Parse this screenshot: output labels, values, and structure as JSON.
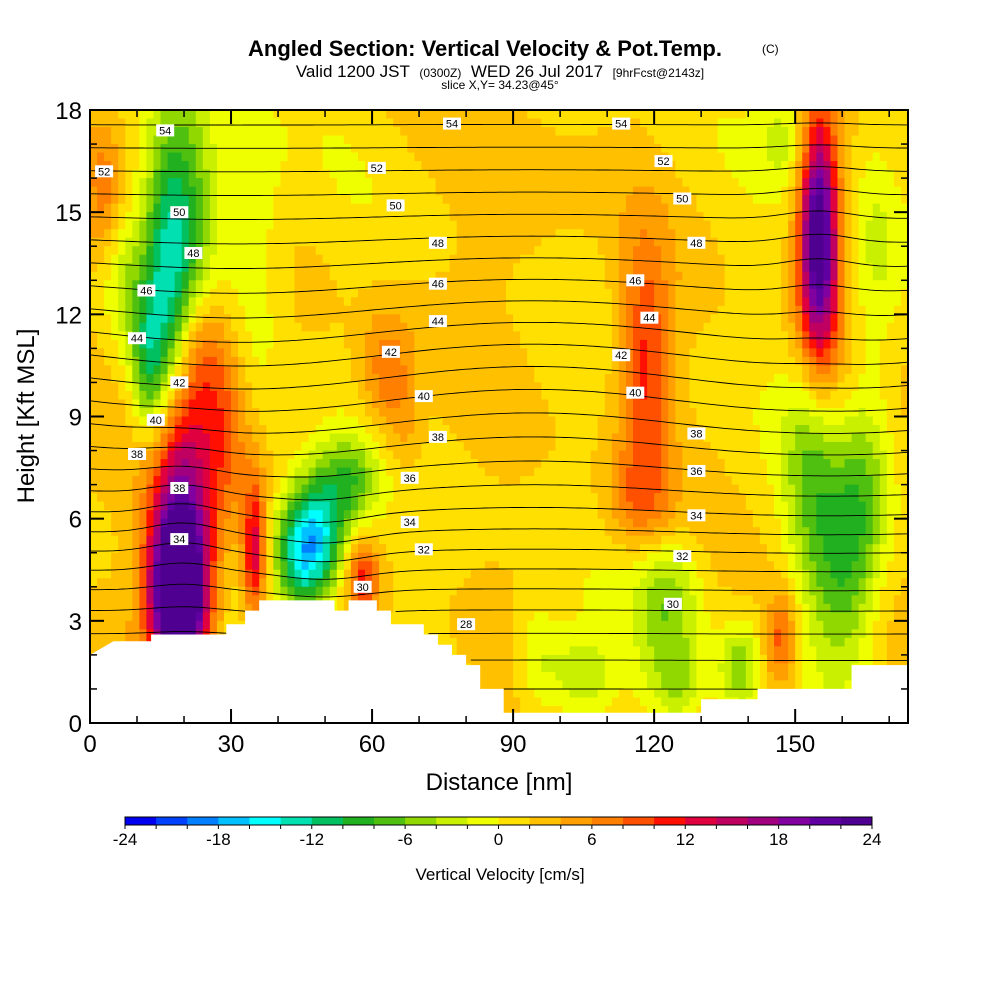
{
  "chart_data": {
    "type": "heatmap",
    "title": "Angled Section: Vertical Velocity & Pot.Temp.",
    "title_mark": "(C)",
    "subtitle": {
      "valid": "Valid 1200 JST",
      "utc": "(0300Z)",
      "date": "WED 26 Jul 2017",
      "forecast": "[9hrFcst@2143z]",
      "slice": "slice X,Y= 34.23@45°"
    },
    "xlabel": "Distance [nm]",
    "ylabel": "Height [Kft MSL]",
    "xlim": [
      0,
      174
    ],
    "ylim": [
      0,
      18
    ],
    "xticks": [
      0,
      30,
      60,
      90,
      120,
      150
    ],
    "yticks": [
      0,
      3,
      6,
      9,
      12,
      15,
      18
    ],
    "colorbar": {
      "label": "Vertical Velocity [cm/s]",
      "range": [
        -24,
        24
      ],
      "ticks": [
        -24,
        -18,
        -12,
        -6,
        0,
        6,
        12,
        18,
        24
      ],
      "colors": [
        "#0000f0",
        "#0040ff",
        "#0080ff",
        "#00c0ff",
        "#00ffff",
        "#00e0b0",
        "#00c060",
        "#20b020",
        "#50c010",
        "#90d800",
        "#c8f000",
        "#f0ff00",
        "#ffe000",
        "#ffc000",
        "#ffa000",
        "#ff8000",
        "#ff5000",
        "#ff1000",
        "#e00040",
        "#c00060",
        "#a00080",
        "#8000a0",
        "#6000a0",
        "#500090"
      ]
    },
    "terrain": [
      [
        0,
        2.0
      ],
      [
        5,
        2.4
      ],
      [
        13,
        2.4
      ],
      [
        13,
        2.6
      ],
      [
        29,
        2.6
      ],
      [
        29,
        2.9
      ],
      [
        33,
        2.9
      ],
      [
        33,
        3.3
      ],
      [
        36,
        3.3
      ],
      [
        36,
        3.6
      ],
      [
        52,
        3.6
      ],
      [
        52,
        3.3
      ],
      [
        55,
        3.3
      ],
      [
        55,
        3.6
      ],
      [
        61,
        3.6
      ],
      [
        61,
        3.3
      ],
      [
        64,
        3.3
      ],
      [
        64,
        2.9
      ],
      [
        71,
        2.9
      ],
      [
        71,
        2.6
      ],
      [
        74,
        2.6
      ],
      [
        74,
        2.3
      ],
      [
        77,
        2.3
      ],
      [
        77,
        2.0
      ],
      [
        80,
        2.0
      ],
      [
        80,
        1.7
      ],
      [
        83,
        1.7
      ],
      [
        83,
        1.0
      ],
      [
        88,
        1.0
      ],
      [
        88,
        0.3
      ],
      [
        130,
        0.3
      ],
      [
        130,
        0.7
      ],
      [
        142,
        0.7
      ],
      [
        142,
        1.0
      ],
      [
        162,
        1.0
      ],
      [
        162,
        1.7
      ],
      [
        174,
        1.7
      ]
    ],
    "theta_isentropes": {
      "levels": [
        28,
        29,
        30,
        31,
        32,
        33,
        34,
        35,
        36,
        37,
        38,
        39,
        40,
        41,
        42,
        43,
        44,
        45,
        46,
        47,
        48,
        49,
        50,
        51,
        52,
        53,
        54
      ],
      "labels": [
        {
          "v": "28",
          "x": 80,
          "y": 2.9
        },
        {
          "v": "30",
          "x": 58,
          "y": 4.0
        },
        {
          "v": "30",
          "x": 124,
          "y": 3.5
        },
        {
          "v": "32",
          "x": 71,
          "y": 5.1
        },
        {
          "v": "32",
          "x": 126,
          "y": 4.9
        },
        {
          "v": "34",
          "x": 19,
          "y": 5.4
        },
        {
          "v": "34",
          "x": 68,
          "y": 5.9
        },
        {
          "v": "34",
          "x": 129,
          "y": 6.1
        },
        {
          "v": "36",
          "x": 68,
          "y": 7.2
        },
        {
          "v": "36",
          "x": 129,
          "y": 7.4
        },
        {
          "v": "38",
          "x": 19,
          "y": 6.9
        },
        {
          "v": "38",
          "x": 10,
          "y": 7.9
        },
        {
          "v": "38",
          "x": 74,
          "y": 8.4
        },
        {
          "v": "38",
          "x": 129,
          "y": 8.5
        },
        {
          "v": "40",
          "x": 14,
          "y": 8.9
        },
        {
          "v": "40",
          "x": 71,
          "y": 9.6
        },
        {
          "v": "40",
          "x": 116,
          "y": 9.7
        },
        {
          "v": "42",
          "x": 19,
          "y": 10.0
        },
        {
          "v": "42",
          "x": 64,
          "y": 10.9
        },
        {
          "v": "42",
          "x": 113,
          "y": 10.8
        },
        {
          "v": "44",
          "x": 10,
          "y": 11.3
        },
        {
          "v": "44",
          "x": 74,
          "y": 11.8
        },
        {
          "v": "44",
          "x": 119,
          "y": 11.9
        },
        {
          "v": "46",
          "x": 12,
          "y": 12.7
        },
        {
          "v": "46",
          "x": 74,
          "y": 12.9
        },
        {
          "v": "46",
          "x": 116,
          "y": 13.0
        },
        {
          "v": "48",
          "x": 22,
          "y": 13.8
        },
        {
          "v": "48",
          "x": 74,
          "y": 14.1
        },
        {
          "v": "48",
          "x": 129,
          "y": 14.1
        },
        {
          "v": "50",
          "x": 19,
          "y": 15.0
        },
        {
          "v": "50",
          "x": 65,
          "y": 15.2
        },
        {
          "v": "50",
          "x": 126,
          "y": 15.4
        },
        {
          "v": "52",
          "x": 3,
          "y": 16.2
        },
        {
          "v": "52",
          "x": 61,
          "y": 16.3
        },
        {
          "v": "52",
          "x": 122,
          "y": 16.5
        },
        {
          "v": "54",
          "x": 16,
          "y": 17.4
        },
        {
          "v": "54",
          "x": 77,
          "y": 17.6
        },
        {
          "v": "54",
          "x": 113,
          "y": 17.6
        }
      ]
    },
    "velocity_features": [
      {
        "x": 19,
        "y": 3.6,
        "sx": 4,
        "sy": 1.6,
        "amp": 28
      },
      {
        "x": 19,
        "y": 5.5,
        "sx": 5,
        "sy": 2.2,
        "amp": 14
      },
      {
        "x": 20,
        "y": 8.5,
        "sx": 5,
        "sy": 2.0,
        "amp": 7
      },
      {
        "x": 29,
        "y": 8.8,
        "sx": 3.5,
        "sy": 1.8,
        "amp": 6
      },
      {
        "x": 24,
        "y": 11.0,
        "sx": 4,
        "sy": 1.3,
        "amp": 6
      },
      {
        "x": 35,
        "y": 5.0,
        "sx": 1.8,
        "sy": 1.5,
        "amp": 12
      },
      {
        "x": 46,
        "y": 5.0,
        "sx": 4.5,
        "sy": 1.2,
        "amp": -18
      },
      {
        "x": 50,
        "y": 6.3,
        "sx": 5,
        "sy": 1.2,
        "amp": -8
      },
      {
        "x": 56,
        "y": 7.2,
        "sx": 4,
        "sy": 0.9,
        "amp": -6
      },
      {
        "x": 58,
        "y": 4.2,
        "sx": 2.5,
        "sy": 0.9,
        "amp": 9
      },
      {
        "x": 63,
        "y": 10.3,
        "sx": 4,
        "sy": 1.3,
        "amp": 6
      },
      {
        "x": 67,
        "y": 8.5,
        "sx": 3,
        "sy": 1.1,
        "amp": 3
      },
      {
        "x": 20,
        "y": 15.0,
        "sx": 5,
        "sy": 2.5,
        "amp": -10
      },
      {
        "x": 16,
        "y": 12.0,
        "sx": 3.5,
        "sy": 3.0,
        "amp": -9
      },
      {
        "x": 12,
        "y": 10.5,
        "sx": 2.5,
        "sy": 1.5,
        "amp": -8
      },
      {
        "x": 7,
        "y": 13.0,
        "sx": 3,
        "sy": 1.5,
        "amp": -4
      },
      {
        "x": 35,
        "y": 14.0,
        "sx": 5,
        "sy": 3.0,
        "amp": -4
      },
      {
        "x": 3,
        "y": 15.5,
        "sx": 3,
        "sy": 1.5,
        "amp": 5
      },
      {
        "x": 118,
        "y": 10.5,
        "sx": 4,
        "sy": 2.5,
        "amp": 9
      },
      {
        "x": 117,
        "y": 6.5,
        "sx": 5,
        "sy": 1.0,
        "amp": 5
      },
      {
        "x": 123,
        "y": 3.5,
        "sx": 5,
        "sy": 1.5,
        "amp": -7
      },
      {
        "x": 104,
        "y": 1.4,
        "sx": 5,
        "sy": 0.9,
        "amp": -6
      },
      {
        "x": 125,
        "y": 1.1,
        "sx": 4,
        "sy": 0.8,
        "amp": -5
      },
      {
        "x": 138,
        "y": 1.6,
        "sx": 3,
        "sy": 0.9,
        "amp": -7
      },
      {
        "x": 147,
        "y": 2.4,
        "sx": 2.5,
        "sy": 1.0,
        "amp": 8
      },
      {
        "x": 160,
        "y": 4.6,
        "sx": 5,
        "sy": 2.2,
        "amp": -9
      },
      {
        "x": 153,
        "y": 7.5,
        "sx": 4,
        "sy": 2.5,
        "amp": -6
      },
      {
        "x": 165,
        "y": 7.0,
        "sx": 4,
        "sy": 2.0,
        "amp": -5
      },
      {
        "x": 155,
        "y": 14.8,
        "sx": 2.8,
        "sy": 2.2,
        "amp": 20
      },
      {
        "x": 155,
        "y": 12.2,
        "sx": 3.5,
        "sy": 2.0,
        "amp": 8
      },
      {
        "x": 148,
        "y": 17.2,
        "sx": 4,
        "sy": 1.0,
        "amp": -4
      },
      {
        "x": 167,
        "y": 13.5,
        "sx": 4,
        "sy": 3.0,
        "amp": -4
      },
      {
        "x": 92,
        "y": 15.0,
        "sx": 8,
        "sy": 2.0,
        "amp": 2
      },
      {
        "x": 95,
        "y": 2.0,
        "sx": 3,
        "sy": 1.2,
        "amp": -4
      }
    ]
  }
}
